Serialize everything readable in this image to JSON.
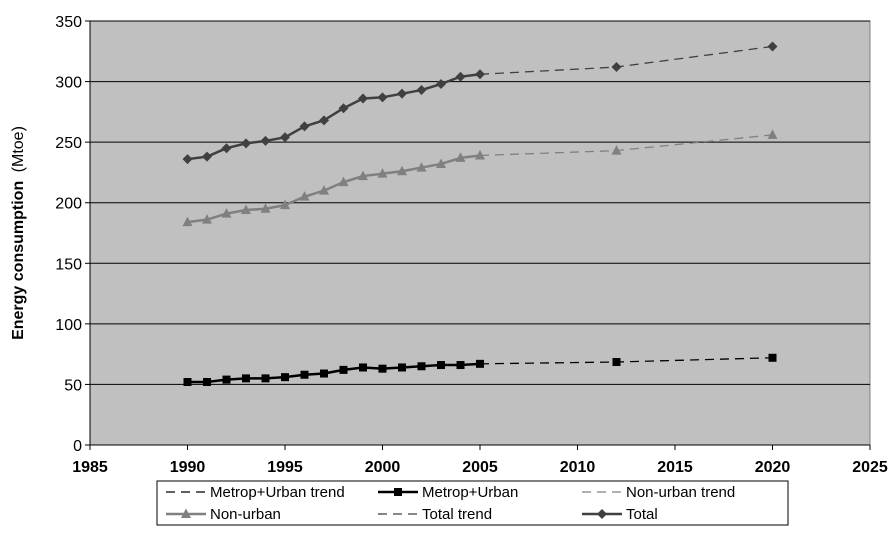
{
  "chart_data": {
    "type": "line",
    "title": "",
    "xlabel": "",
    "ylabel_main": "Energy consumption",
    "ylabel_unit": "(Mtoe)",
    "xlim": [
      1985,
      2025
    ],
    "ylim": [
      0,
      350
    ],
    "x_ticks": [
      1985,
      1990,
      1995,
      2000,
      2005,
      2010,
      2015,
      2020,
      2025
    ],
    "y_ticks": [
      0,
      50,
      100,
      150,
      200,
      250,
      300,
      350
    ],
    "grid": "horizontal",
    "plot_background": "#c0c0c0",
    "legend_position": "bottom",
    "series": [
      {
        "name": "Metrop+Urban trend",
        "style": "dashed",
        "color": "#000000",
        "marker": "none",
        "x": [
          2005,
          2012,
          2020
        ],
        "y": [
          67,
          68.5,
          72
        ]
      },
      {
        "name": "Metrop+Urban",
        "style": "solid",
        "color": "#000000",
        "marker": "square",
        "x": [
          1990,
          1991,
          1992,
          1993,
          1994,
          1995,
          1996,
          1997,
          1998,
          1999,
          2000,
          2001,
          2002,
          2003,
          2004,
          2005
        ],
        "y": [
          52,
          52,
          54,
          55,
          55,
          56,
          58,
          59,
          62,
          64,
          63,
          64,
          65,
          66,
          66,
          67
        ]
      },
      {
        "name": "Non-urban trend",
        "style": "dashed",
        "color": "#808080",
        "marker": "none",
        "x": [
          2005,
          2012,
          2020
        ],
        "y": [
          239,
          243,
          256
        ]
      },
      {
        "name": "Non-urban",
        "style": "solid",
        "color": "#808080",
        "marker": "triangle",
        "x": [
          1990,
          1991,
          1992,
          1993,
          1994,
          1995,
          1996,
          1997,
          1998,
          1999,
          2000,
          2001,
          2002,
          2003,
          2004,
          2005
        ],
        "y": [
          184,
          186,
          191,
          194,
          195,
          198,
          205,
          210,
          217,
          222,
          224,
          226,
          229,
          232,
          237,
          239
        ]
      },
      {
        "name": "Total trend",
        "style": "dashed",
        "color": "#404040",
        "marker": "none",
        "x": [
          2005,
          2012,
          2020
        ],
        "y": [
          306,
          312,
          329
        ]
      },
      {
        "name": "Total",
        "style": "solid",
        "color": "#404040",
        "marker": "diamond",
        "x": [
          1990,
          1991,
          1992,
          1993,
          1994,
          1995,
          1996,
          1997,
          1998,
          1999,
          2000,
          2001,
          2002,
          2003,
          2004,
          2005
        ],
        "y": [
          236,
          238,
          245,
          249,
          251,
          254,
          263,
          268,
          278,
          286,
          287,
          290,
          293,
          298,
          304,
          306
        ]
      }
    ],
    "extra_markers": [
      {
        "series": "Metrop+Urban trend",
        "marker": "square",
        "color": "#000000",
        "x": [
          2012,
          2020
        ],
        "y": [
          68.5,
          72
        ]
      },
      {
        "series": "Non-urban trend",
        "marker": "triangle",
        "color": "#808080",
        "x": [
          2012,
          2020
        ],
        "y": [
          243,
          256
        ]
      },
      {
        "series": "Total trend",
        "marker": "diamond",
        "color": "#404040",
        "x": [
          2012,
          2020
        ],
        "y": [
          312,
          329
        ]
      }
    ]
  }
}
